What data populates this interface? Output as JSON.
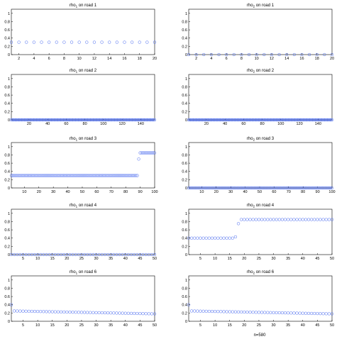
{
  "footer": "n=580",
  "colors": {
    "marker": "#4f6ff0",
    "axis": "#000000"
  },
  "chart_data": [
    {
      "type": "scatter",
      "title_pre": "rho",
      "title_sub": "1",
      "title_post": " on road 1",
      "xlim": [
        1,
        20
      ],
      "ylim": [
        0,
        1.1
      ],
      "xticks": [
        2,
        4,
        6,
        8,
        10,
        12,
        14,
        16,
        18,
        20
      ],
      "yticks": [
        0,
        0.2,
        0.4,
        0.6,
        0.8,
        1
      ],
      "series": [
        {
          "segments": [
            {
              "from": 1,
              "to": 20,
              "step": 1,
              "y0": 0.3,
              "y1": 0.3
            }
          ]
        }
      ]
    },
    {
      "type": "scatter",
      "title_pre": "rho",
      "title_sub": "2",
      "title_post": " on road 1",
      "xlim": [
        1,
        20
      ],
      "ylim": [
        0,
        1.1
      ],
      "xticks": [
        2,
        4,
        6,
        8,
        10,
        12,
        14,
        16,
        18,
        20
      ],
      "yticks": [
        0,
        0.2,
        0.4,
        0.6,
        0.8,
        1
      ],
      "series": [
        {
          "segments": [
            {
              "from": 1,
              "to": 20,
              "step": 1,
              "y0": 0.0,
              "y1": 0.0
            }
          ]
        }
      ]
    },
    {
      "type": "scatter",
      "title_pre": "rho",
      "title_sub": "1",
      "title_post": " on road 2",
      "xlim": [
        1,
        155
      ],
      "ylim": [
        0,
        1.1
      ],
      "xticks": [
        20,
        40,
        60,
        80,
        100,
        120,
        140
      ],
      "yticks": [
        0,
        0.2,
        0.4,
        0.6,
        0.8,
        1
      ],
      "series": [
        {
          "segments": [
            {
              "from": 1,
              "to": 155,
              "step": 1,
              "y0": 0.0,
              "y1": 0.0
            }
          ]
        }
      ]
    },
    {
      "type": "scatter",
      "title_pre": "rho",
      "title_sub": "2",
      "title_post": " on road 2",
      "xlim": [
        1,
        155
      ],
      "ylim": [
        0,
        1.1
      ],
      "xticks": [
        20,
        40,
        60,
        80,
        100,
        120,
        140
      ],
      "yticks": [
        0,
        0.2,
        0.4,
        0.6,
        0.8,
        1
      ],
      "series": [
        {
          "segments": [
            {
              "from": 1,
              "to": 155,
              "step": 1,
              "y0": 0.0,
              "y1": 0.0
            }
          ]
        }
      ]
    },
    {
      "type": "scatter",
      "title_pre": "rho",
      "title_sub": "1",
      "title_post": " on road 3",
      "xlim": [
        1,
        100
      ],
      "ylim": [
        0,
        1.1
      ],
      "xticks": [
        10,
        20,
        30,
        40,
        50,
        60,
        70,
        80,
        90,
        100
      ],
      "yticks": [
        0,
        0.2,
        0.4,
        0.6,
        0.8,
        1
      ],
      "series": [
        {
          "segments": [
            {
              "from": 1,
              "to": 88,
              "step": 1,
              "y0": 0.3,
              "y1": 0.3
            },
            {
              "from": 89,
              "to": 89,
              "step": 1,
              "y0": 0.7,
              "y1": 0.7
            },
            {
              "from": 90,
              "to": 100,
              "step": 1,
              "y0": 0.85,
              "y1": 0.85
            }
          ]
        }
      ]
    },
    {
      "type": "scatter",
      "title_pre": "rho",
      "title_sub": "2",
      "title_post": " on road 3",
      "xlim": [
        1,
        100
      ],
      "ylim": [
        0,
        1.1
      ],
      "xticks": [
        10,
        20,
        30,
        40,
        50,
        60,
        70,
        80,
        90,
        100
      ],
      "yticks": [
        0,
        0.2,
        0.4,
        0.6,
        0.8,
        1
      ],
      "series": [
        {
          "segments": [
            {
              "from": 1,
              "to": 100,
              "step": 1,
              "y0": 0.0,
              "y1": 0.0
            }
          ]
        }
      ]
    },
    {
      "type": "scatter",
      "title_pre": "rho",
      "title_sub": "1",
      "title_post": " on road 4",
      "xlim": [
        1,
        50
      ],
      "ylim": [
        0,
        1.1
      ],
      "xticks": [
        5,
        10,
        15,
        20,
        25,
        30,
        35,
        40,
        45,
        50
      ],
      "yticks": [
        0,
        0.2,
        0.4,
        0.6,
        0.8,
        1
      ],
      "series": [
        {
          "segments": [
            {
              "from": 1,
              "to": 50,
              "step": 1,
              "y0": 0.0,
              "y1": 0.0
            }
          ]
        }
      ]
    },
    {
      "type": "scatter",
      "title_pre": "rho",
      "title_sub": "2",
      "title_post": " on road 4",
      "xlim": [
        1,
        50
      ],
      "ylim": [
        0,
        1.1
      ],
      "xticks": [
        5,
        10,
        15,
        20,
        25,
        30,
        35,
        40,
        45,
        50
      ],
      "yticks": [
        0,
        0.2,
        0.4,
        0.6,
        0.8,
        1
      ],
      "series": [
        {
          "segments": [
            {
              "from": 1,
              "to": 16,
              "step": 1,
              "y0": 0.4,
              "y1": 0.4
            },
            {
              "from": 17,
              "to": 17,
              "step": 1,
              "y0": 0.43,
              "y1": 0.43
            },
            {
              "from": 18,
              "to": 18,
              "step": 1,
              "y0": 0.75,
              "y1": 0.75
            },
            {
              "from": 19,
              "to": 50,
              "step": 1,
              "y0": 0.85,
              "y1": 0.85
            }
          ]
        }
      ]
    },
    {
      "type": "scatter",
      "title_pre": "rho",
      "title_sub": "1",
      "title_post": " on road 6",
      "xlim": [
        1,
        50
      ],
      "ylim": [
        0,
        1.1
      ],
      "xticks": [
        5,
        10,
        15,
        20,
        25,
        30,
        35,
        40,
        45,
        50
      ],
      "yticks": [
        0,
        0.2,
        0.4,
        0.6,
        0.8,
        1
      ],
      "series": [
        {
          "segments": [
            {
              "from": 1,
              "to": 1,
              "step": 1,
              "y0": 0.4,
              "y1": 0.4
            },
            {
              "from": 2,
              "to": 50,
              "step": 1,
              "y0": 0.25,
              "y1": 0.18
            }
          ]
        }
      ]
    },
    {
      "type": "scatter",
      "title_pre": "rho",
      "title_sub": "2",
      "title_post": " on road 6",
      "xlim": [
        1,
        50
      ],
      "ylim": [
        0,
        1.1
      ],
      "xticks": [
        5,
        10,
        15,
        20,
        25,
        30,
        35,
        40,
        45,
        50
      ],
      "yticks": [
        0,
        0.2,
        0.4,
        0.6,
        0.8,
        1
      ],
      "series": [
        {
          "segments": [
            {
              "from": 1,
              "to": 1,
              "step": 1,
              "y0": 0.4,
              "y1": 0.4
            },
            {
              "from": 2,
              "to": 50,
              "step": 1,
              "y0": 0.25,
              "y1": 0.18
            }
          ]
        }
      ]
    }
  ]
}
